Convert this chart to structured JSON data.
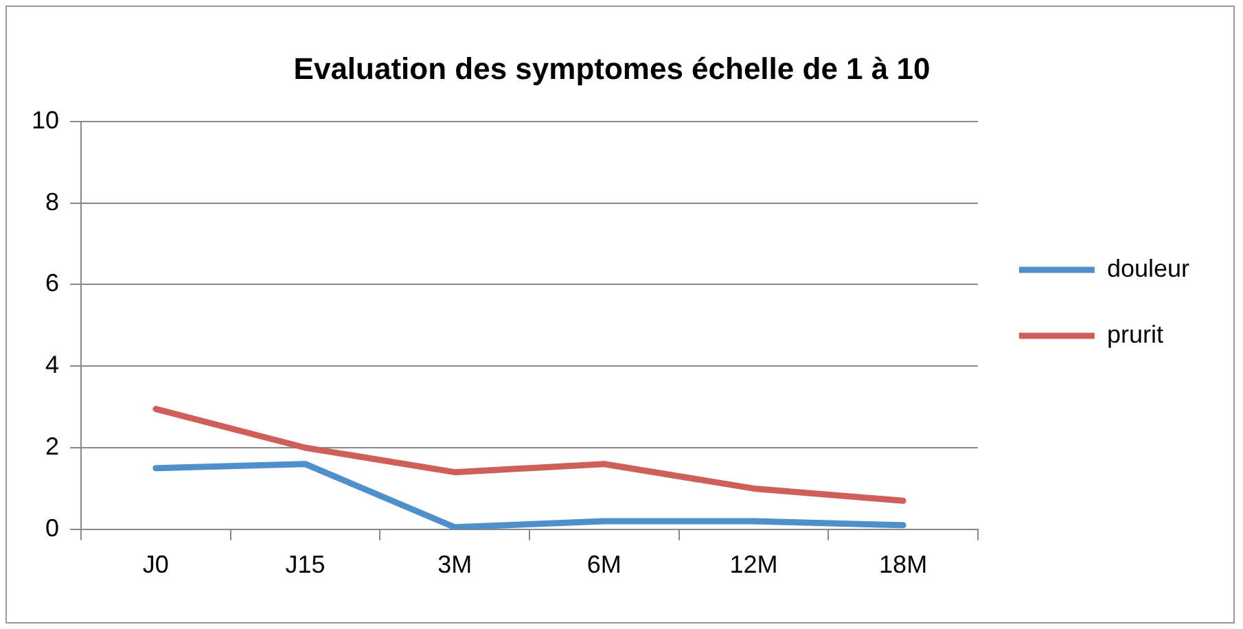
{
  "chart_data": {
    "type": "line",
    "title": "Evaluation des symptomes échelle de 1 à 10",
    "categories": [
      "J0",
      "J15",
      "3M",
      "6M",
      "12M",
      "18M"
    ],
    "series": [
      {
        "name": "douleur",
        "color": "#4f8fcb",
        "values": [
          1.5,
          1.6,
          0.05,
          0.2,
          0.2,
          0.1
        ]
      },
      {
        "name": "prurit",
        "color": "#cf5f5a",
        "values": [
          2.95,
          2.0,
          1.4,
          1.6,
          1.0,
          0.7
        ]
      }
    ],
    "ylim": [
      0,
      10
    ],
    "yticks": [
      0,
      2,
      4,
      6,
      8,
      10
    ],
    "grid": "y",
    "legend": "right",
    "marker": "none",
    "line_style": "solid"
  }
}
